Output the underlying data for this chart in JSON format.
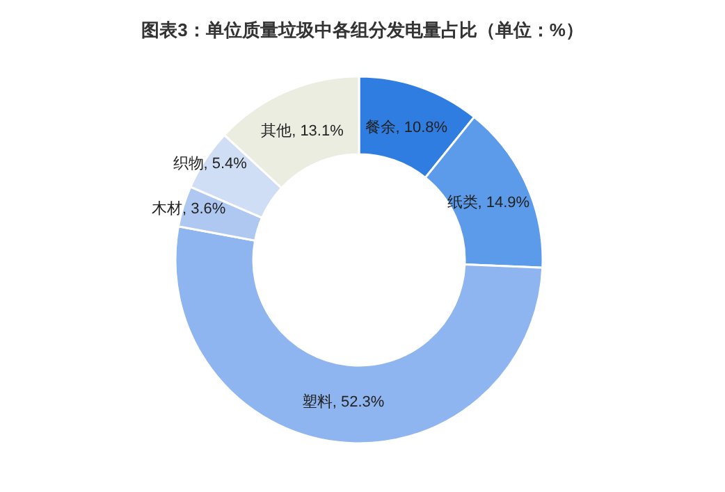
{
  "chart_data": {
    "type": "donut",
    "title": "图表3：单位质量垃圾中各组分发电量占比（单位：%）",
    "categories": [
      "餐余",
      "纸类",
      "塑料",
      "木材",
      "织物",
      "其他"
    ],
    "values": [
      10.8,
      14.9,
      52.3,
      3.6,
      5.4,
      13.1
    ],
    "value_labels": [
      "10.8%",
      "14.9%",
      "52.3%",
      "3.6%",
      "5.4%",
      "13.1%"
    ],
    "colors": [
      "#2f7de1",
      "#5c9be9",
      "#8fb5f0",
      "#aec8f1",
      "#d0def5",
      "#eaede0"
    ]
  }
}
